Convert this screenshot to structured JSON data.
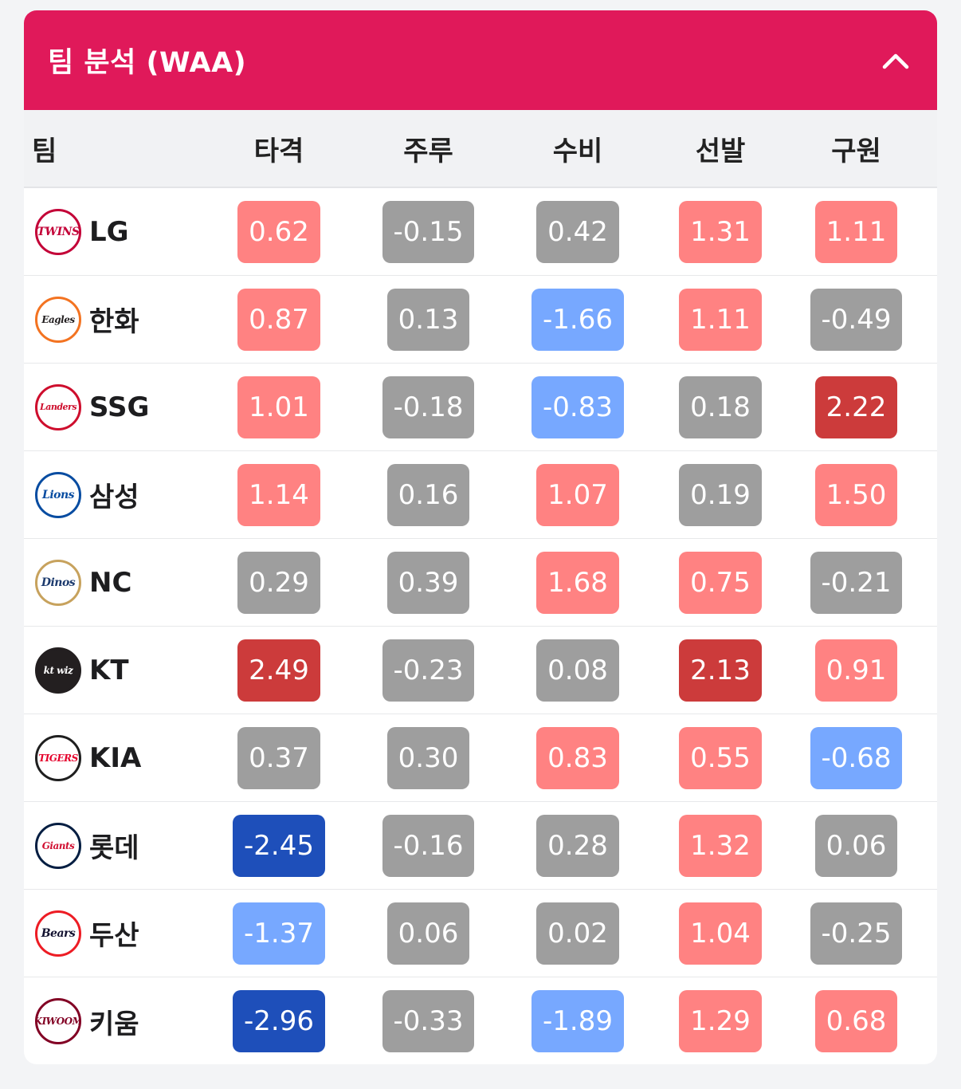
{
  "panel": {
    "title": "팀 분석 (WAA)"
  },
  "columns": [
    "팀",
    "타격",
    "주루",
    "수비",
    "선발",
    "구원"
  ],
  "colors": {
    "header_bg": "#e0195a",
    "neutral": "#9e9e9e",
    "pos1": "#ff8282",
    "pos2": "#cc3b3b",
    "neg1": "#77a8ff",
    "neg2": "#1e4fba"
  },
  "teams": [
    {
      "name": "LG",
      "logo": "TWINS",
      "logo_icon": "lg-twins-logo-icon",
      "values": [
        "0.62",
        "-0.15",
        "0.42",
        "1.31",
        "1.11"
      ]
    },
    {
      "name": "한화",
      "logo": "Eagles",
      "logo_icon": "hanwha-eagles-logo-icon",
      "values": [
        "0.87",
        "0.13",
        "-1.66",
        "1.11",
        "-0.49"
      ]
    },
    {
      "name": "SSG",
      "logo": "Landers",
      "logo_icon": "ssg-landers-logo-icon",
      "values": [
        "1.01",
        "-0.18",
        "-0.83",
        "0.18",
        "2.22"
      ]
    },
    {
      "name": "삼성",
      "logo": "Lions",
      "logo_icon": "samsung-lions-logo-icon",
      "values": [
        "1.14",
        "0.16",
        "1.07",
        "0.19",
        "1.50"
      ]
    },
    {
      "name": "NC",
      "logo": "Dinos",
      "logo_icon": "nc-dinos-logo-icon",
      "values": [
        "0.29",
        "0.39",
        "1.68",
        "0.75",
        "-0.21"
      ]
    },
    {
      "name": "KT",
      "logo": "kt wiz",
      "logo_icon": "kt-wiz-logo-icon",
      "values": [
        "2.49",
        "-0.23",
        "0.08",
        "2.13",
        "0.91"
      ]
    },
    {
      "name": "KIA",
      "logo": "TIGERS",
      "logo_icon": "kia-tigers-logo-icon",
      "values": [
        "0.37",
        "0.30",
        "0.83",
        "0.55",
        "-0.68"
      ]
    },
    {
      "name": "롯데",
      "logo": "Giants",
      "logo_icon": "lotte-giants-logo-icon",
      "values": [
        "-2.45",
        "-0.16",
        "0.28",
        "1.32",
        "0.06"
      ]
    },
    {
      "name": "두산",
      "logo": "Bears",
      "logo_icon": "doosan-bears-logo-icon",
      "values": [
        "-1.37",
        "0.06",
        "0.02",
        "1.04",
        "-0.25"
      ]
    },
    {
      "name": "키움",
      "logo": "KIWOOM",
      "logo_icon": "kiwoom-heroes-logo-icon",
      "values": [
        "-2.96",
        "-0.33",
        "-1.89",
        "1.29",
        "0.68"
      ]
    }
  ],
  "badge_levels": [
    [
      "pos1",
      "neutral",
      "neutral",
      "pos1",
      "pos1"
    ],
    [
      "pos1",
      "neutral",
      "neg1",
      "pos1",
      "neutral"
    ],
    [
      "pos1",
      "neutral",
      "neg1",
      "neutral",
      "pos2"
    ],
    [
      "pos1",
      "neutral",
      "pos1",
      "neutral",
      "pos1"
    ],
    [
      "neutral",
      "neutral",
      "pos1",
      "pos1",
      "neutral"
    ],
    [
      "pos2",
      "neutral",
      "neutral",
      "pos2",
      "pos1"
    ],
    [
      "neutral",
      "neutral",
      "pos1",
      "pos1",
      "neg1"
    ],
    [
      "neg2",
      "neutral",
      "neutral",
      "pos1",
      "neutral"
    ],
    [
      "neg1",
      "neutral",
      "neutral",
      "pos1",
      "neutral"
    ],
    [
      "neg2",
      "neutral",
      "neg1",
      "pos1",
      "pos1"
    ]
  ],
  "logo_styles": [
    {
      "bg": "#ffffff",
      "fg": "#c30037",
      "border": "#c30037"
    },
    {
      "bg": "#ffffff",
      "fg": "#231f20",
      "border": "#f37321"
    },
    {
      "bg": "#ffffff",
      "fg": "#ce0e2d",
      "border": "#ce0e2d"
    },
    {
      "bg": "#ffffff",
      "fg": "#074ca1",
      "border": "#074ca1"
    },
    {
      "bg": "#ffffff",
      "fg": "#1d3b6e",
      "border": "#c7a25d"
    },
    {
      "bg": "#231f20",
      "fg": "#ffffff",
      "border": "#231f20"
    },
    {
      "bg": "#ffffff",
      "fg": "#e5002b",
      "border": "#1f1f1f"
    },
    {
      "bg": "#ffffff",
      "fg": "#d00f31",
      "border": "#041e42"
    },
    {
      "bg": "#ffffff",
      "fg": "#131230",
      "border": "#ed1c24"
    },
    {
      "bg": "#ffffff",
      "fg": "#820024",
      "border": "#820024"
    }
  ]
}
